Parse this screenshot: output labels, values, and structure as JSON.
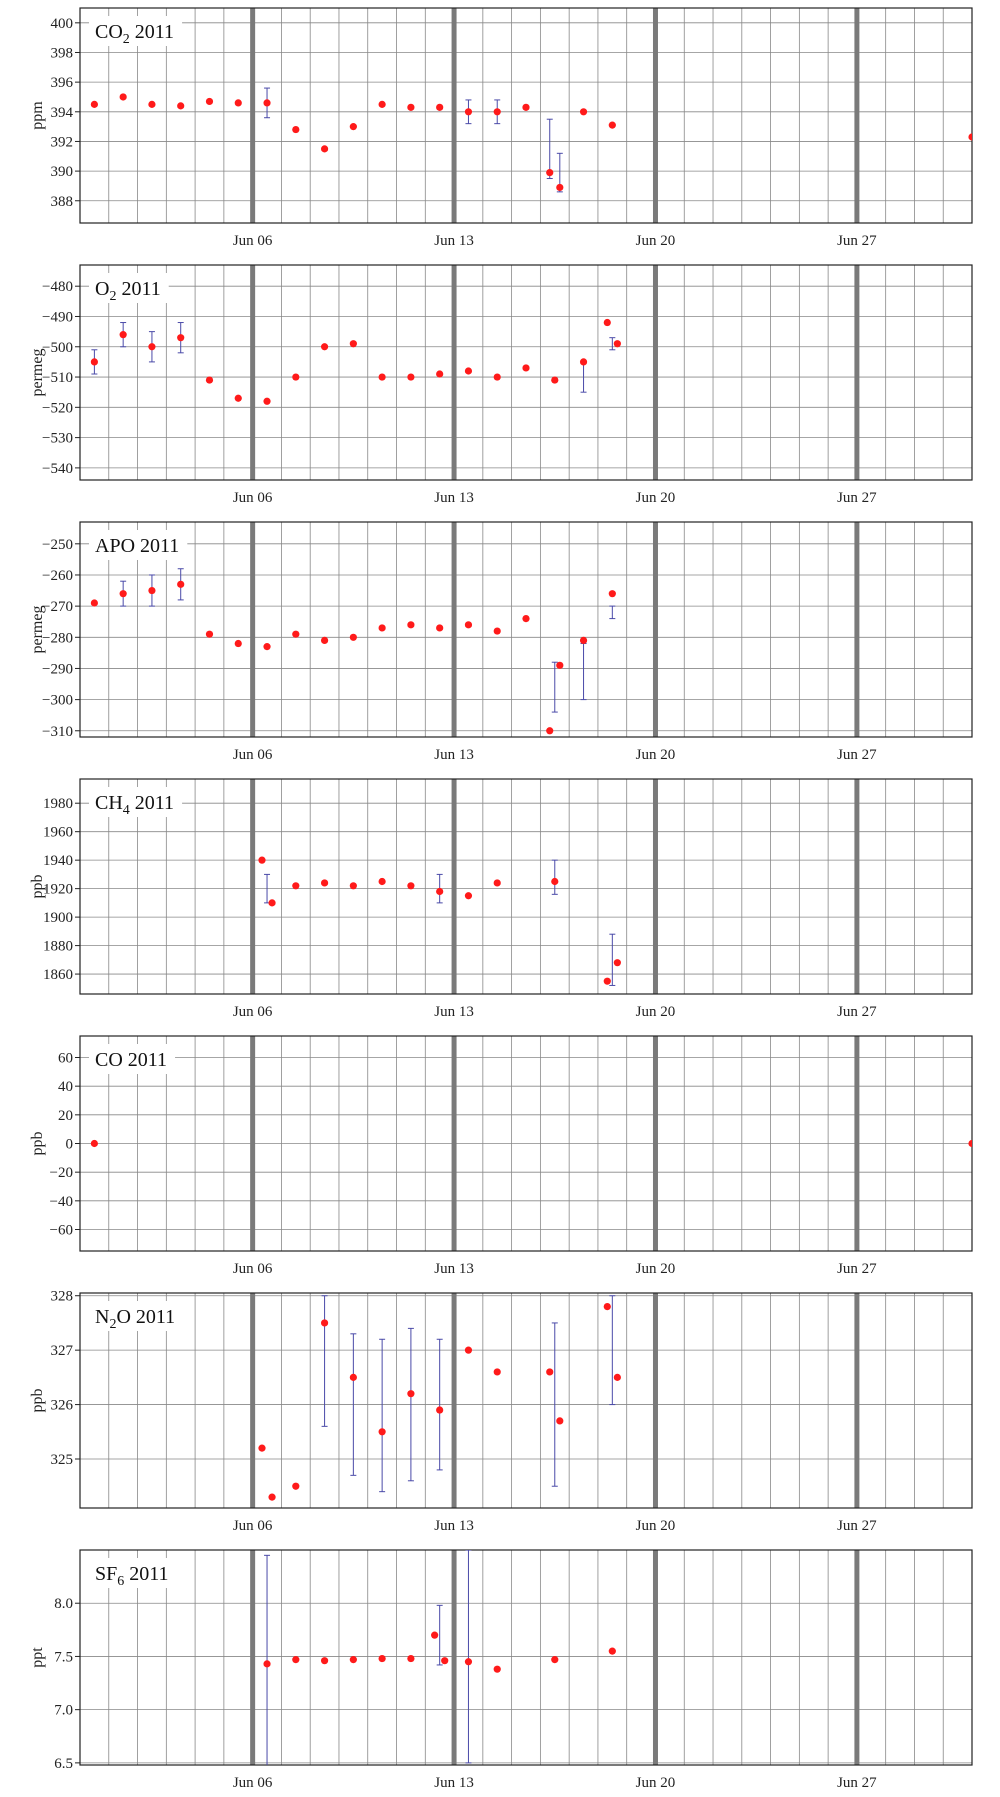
{
  "style": {
    "point_color": "#ff1a1a",
    "errorbar_color": "#4a4aa8",
    "grid_color": "#888888",
    "week_line_color": "#7a7a7a",
    "frame_color": "#222222"
  },
  "x_axis": {
    "range": [
      "2011-05-31",
      "2011-07-01"
    ],
    "tick_labels": [
      "Jun 06",
      "Jun 13",
      "Jun 20",
      "Jun 27"
    ],
    "tick_dates": [
      "2011-06-06",
      "2011-06-13",
      "2011-06-20",
      "2011-06-27"
    ],
    "grid": "daily"
  },
  "chart_data": [
    {
      "type": "scatter",
      "title": "CO₂ 2011",
      "title_main": "CO",
      "title_sub": "2",
      "title_rest": " 2011",
      "ylabel": "ppm",
      "ylim": [
        386.5,
        401
      ],
      "yticks": [
        388,
        390,
        392,
        394,
        396,
        398,
        400
      ],
      "ytick_labels": [
        "388",
        "390",
        "392",
        "394",
        "396",
        "398",
        "400"
      ],
      "grid": true,
      "points": [
        [
          "2011-05-31",
          394.5
        ],
        [
          "2011-06-01",
          395.0
        ],
        [
          "2011-06-02",
          394.5
        ],
        [
          "2011-06-03",
          394.4
        ],
        [
          "2011-06-04",
          394.7
        ],
        [
          "2011-06-05",
          394.6
        ],
        [
          "2011-06-06",
          394.6
        ],
        [
          "2011-06-07",
          392.8
        ],
        [
          "2011-06-08",
          391.5
        ],
        [
          "2011-06-09",
          393.0
        ],
        [
          "2011-06-10",
          394.5
        ],
        [
          "2011-06-11",
          394.3
        ],
        [
          "2011-06-12",
          394.3
        ],
        [
          "2011-06-13",
          394.0
        ],
        [
          "2011-06-14",
          394.0
        ],
        [
          "2011-06-15",
          394.3
        ],
        [
          "2011-06-16",
          389.9
        ],
        [
          "2011-06-16",
          388.9
        ],
        [
          "2011-06-17",
          394.0
        ],
        [
          "2011-06-18",
          393.1
        ],
        [
          "2011-07-01",
          392.3
        ]
      ],
      "errors": [
        [
          "2011-06-06",
          394.6,
          1.0
        ],
        [
          "2011-06-13",
          394.0,
          0.8
        ],
        [
          "2011-06-14",
          394.0,
          0.8
        ],
        [
          "2011-06-16",
          391.5,
          2.0
        ],
        [
          "2011-06-16",
          389.9,
          1.3
        ]
      ]
    },
    {
      "type": "scatter",
      "title": "O₂ 2011",
      "title_main": "O",
      "title_sub": "2",
      "title_rest": " 2011",
      "ylabel": "permeg",
      "ylim": [
        -544,
        -473
      ],
      "yticks": [
        -540,
        -530,
        -520,
        -510,
        -500,
        -490,
        -480
      ],
      "ytick_labels": [
        "−540",
        "−530",
        "−520",
        "−510",
        "−500",
        "−490",
        "−480"
      ],
      "grid": true,
      "points": [
        [
          "2011-05-31",
          -505
        ],
        [
          "2011-06-01",
          -496
        ],
        [
          "2011-06-02",
          -500
        ],
        [
          "2011-06-03",
          -497
        ],
        [
          "2011-06-04",
          -511
        ],
        [
          "2011-06-05",
          -517
        ],
        [
          "2011-06-06",
          -518
        ],
        [
          "2011-06-07",
          -510
        ],
        [
          "2011-06-08",
          -500
        ],
        [
          "2011-06-09",
          -499
        ],
        [
          "2011-06-10",
          -510
        ],
        [
          "2011-06-11",
          -510
        ],
        [
          "2011-06-12",
          -509
        ],
        [
          "2011-06-13",
          -508
        ],
        [
          "2011-06-14",
          -510
        ],
        [
          "2011-06-15",
          -507
        ],
        [
          "2011-06-16",
          -511
        ],
        [
          "2011-06-17",
          -505
        ],
        [
          "2011-06-18",
          -492
        ],
        [
          "2011-06-18",
          -499
        ]
      ],
      "errors": [
        [
          "2011-05-31",
          -505,
          4
        ],
        [
          "2011-06-01",
          -496,
          4
        ],
        [
          "2011-06-02",
          -500,
          5
        ],
        [
          "2011-06-03",
          -497,
          5
        ],
        [
          "2011-06-17",
          -510,
          5
        ],
        [
          "2011-06-18",
          -499,
          2
        ]
      ]
    },
    {
      "type": "scatter",
      "title": "APO 2011",
      "title_main": "APO 2011",
      "title_sub": "",
      "title_rest": "",
      "ylabel": "permeg",
      "ylim": [
        -312,
        -243
      ],
      "yticks": [
        -310,
        -300,
        -290,
        -280,
        -270,
        -260,
        -250
      ],
      "ytick_labels": [
        "−310",
        "−300",
        "−290",
        "−280",
        "−270",
        "−260",
        "−250"
      ],
      "grid": true,
      "points": [
        [
          "2011-05-31",
          -269
        ],
        [
          "2011-06-01",
          -266
        ],
        [
          "2011-06-02",
          -265
        ],
        [
          "2011-06-03",
          -263
        ],
        [
          "2011-06-04",
          -279
        ],
        [
          "2011-06-05",
          -282
        ],
        [
          "2011-06-06",
          -283
        ],
        [
          "2011-06-07",
          -279
        ],
        [
          "2011-06-08",
          -281
        ],
        [
          "2011-06-09",
          -280
        ],
        [
          "2011-06-10",
          -277
        ],
        [
          "2011-06-11",
          -276
        ],
        [
          "2011-06-12",
          -277
        ],
        [
          "2011-06-13",
          -276
        ],
        [
          "2011-06-14",
          -278
        ],
        [
          "2011-06-15",
          -274
        ],
        [
          "2011-06-16",
          -310
        ],
        [
          "2011-06-16",
          -289
        ],
        [
          "2011-06-17",
          -281
        ],
        [
          "2011-06-18",
          -266
        ]
      ],
      "errors": [
        [
          "2011-06-01",
          -266,
          4
        ],
        [
          "2011-06-02",
          -265,
          5
        ],
        [
          "2011-06-03",
          -263,
          5
        ],
        [
          "2011-06-16",
          -296,
          8
        ],
        [
          "2011-06-17",
          -291,
          9
        ],
        [
          "2011-06-18",
          -272,
          2
        ]
      ]
    },
    {
      "type": "scatter",
      "title": "CH₄ 2011",
      "title_main": "CH",
      "title_sub": "4",
      "title_rest": " 2011",
      "ylabel": "ppb",
      "ylim": [
        1846,
        1997
      ],
      "yticks": [
        1860,
        1880,
        1900,
        1920,
        1940,
        1960,
        1980
      ],
      "ytick_labels": [
        "1860",
        "1880",
        "1900",
        "1920",
        "1940",
        "1960",
        "1980"
      ],
      "grid": true,
      "points": [
        [
          "2011-06-06",
          1940
        ],
        [
          "2011-06-06",
          1910
        ],
        [
          "2011-06-07",
          1922
        ],
        [
          "2011-06-08",
          1924
        ],
        [
          "2011-06-09",
          1922
        ],
        [
          "2011-06-10",
          1925
        ],
        [
          "2011-06-11",
          1922
        ],
        [
          "2011-06-12",
          1918
        ],
        [
          "2011-06-13",
          1915
        ],
        [
          "2011-06-14",
          1924
        ],
        [
          "2011-06-16",
          1925
        ],
        [
          "2011-06-18",
          1855
        ],
        [
          "2011-06-18",
          1868
        ]
      ],
      "errors": [
        [
          "2011-06-06",
          1920,
          10
        ],
        [
          "2011-06-12",
          1920,
          10
        ],
        [
          "2011-06-16",
          1928,
          12
        ],
        [
          "2011-06-18",
          1870,
          18
        ]
      ]
    },
    {
      "type": "scatter",
      "title": "CO 2011",
      "title_main": "CO 2011",
      "title_sub": "",
      "title_rest": "",
      "ylabel": "ppb",
      "ylim": [
        -75,
        75
      ],
      "yticks": [
        -60,
        -40,
        -20,
        0,
        20,
        40,
        60
      ],
      "ytick_labels": [
        "−60",
        "−40",
        "−20",
        "0",
        "20",
        "40",
        "60"
      ],
      "grid": true,
      "points": [
        [
          "2011-05-31",
          0
        ],
        [
          "2011-07-01",
          0
        ]
      ],
      "errors": []
    },
    {
      "type": "scatter",
      "title": "N₂O 2011",
      "title_main": "N",
      "title_sub": "2",
      "title_rest": "O 2011",
      "ylabel": "ppb",
      "ylim": [
        324.1,
        328.05
      ],
      "yticks": [
        325,
        326,
        327,
        328
      ],
      "ytick_labels": [
        "325",
        "326",
        "327",
        "328"
      ],
      "grid": true,
      "points": [
        [
          "2011-06-06",
          325.2
        ],
        [
          "2011-06-06",
          324.3
        ],
        [
          "2011-06-07",
          324.5
        ],
        [
          "2011-06-08",
          327.5
        ],
        [
          "2011-06-09",
          326.5
        ],
        [
          "2011-06-10",
          325.5
        ],
        [
          "2011-06-11",
          326.2
        ],
        [
          "2011-06-12",
          325.9
        ],
        [
          "2011-06-13",
          327.0
        ],
        [
          "2011-06-14",
          326.6
        ],
        [
          "2011-06-16",
          326.6
        ],
        [
          "2011-06-16",
          325.7
        ],
        [
          "2011-06-18",
          327.8
        ],
        [
          "2011-06-18",
          326.5
        ]
      ],
      "errors": [
        [
          "2011-06-08",
          326.8,
          1.2
        ],
        [
          "2011-06-09",
          326.0,
          1.3
        ],
        [
          "2011-06-10",
          325.8,
          1.4
        ],
        [
          "2011-06-11",
          326.0,
          1.4
        ],
        [
          "2011-06-12",
          326.0,
          1.2
        ],
        [
          "2011-06-16",
          326.0,
          1.5
        ],
        [
          "2011-06-18",
          327.0,
          1.0
        ]
      ]
    },
    {
      "type": "scatter",
      "title": "SF₆ 2011",
      "title_main": "SF",
      "title_sub": "6",
      "title_rest": " 2011",
      "ylabel": "ppt",
      "ylim": [
        6.48,
        8.5
      ],
      "yticks": [
        6.5,
        7.0,
        7.5,
        8.0
      ],
      "ytick_labels": [
        "6.5",
        "7.0",
        "7.5",
        "8.0"
      ],
      "grid": true,
      "points": [
        [
          "2011-06-06",
          7.43
        ],
        [
          "2011-06-07",
          7.47
        ],
        [
          "2011-06-08",
          7.46
        ],
        [
          "2011-06-09",
          7.47
        ],
        [
          "2011-06-10",
          7.48
        ],
        [
          "2011-06-11",
          7.48
        ],
        [
          "2011-06-12",
          7.7
        ],
        [
          "2011-06-12",
          7.46
        ],
        [
          "2011-06-13",
          7.45
        ],
        [
          "2011-06-14",
          7.38
        ],
        [
          "2011-06-16",
          7.47
        ],
        [
          "2011-06-18",
          7.55
        ]
      ],
      "errors": [
        [
          "2011-06-06",
          7.45,
          1.0
        ],
        [
          "2011-06-12",
          7.7,
          0.28
        ],
        [
          "2011-06-13",
          7.5,
          1.0
        ]
      ]
    }
  ]
}
